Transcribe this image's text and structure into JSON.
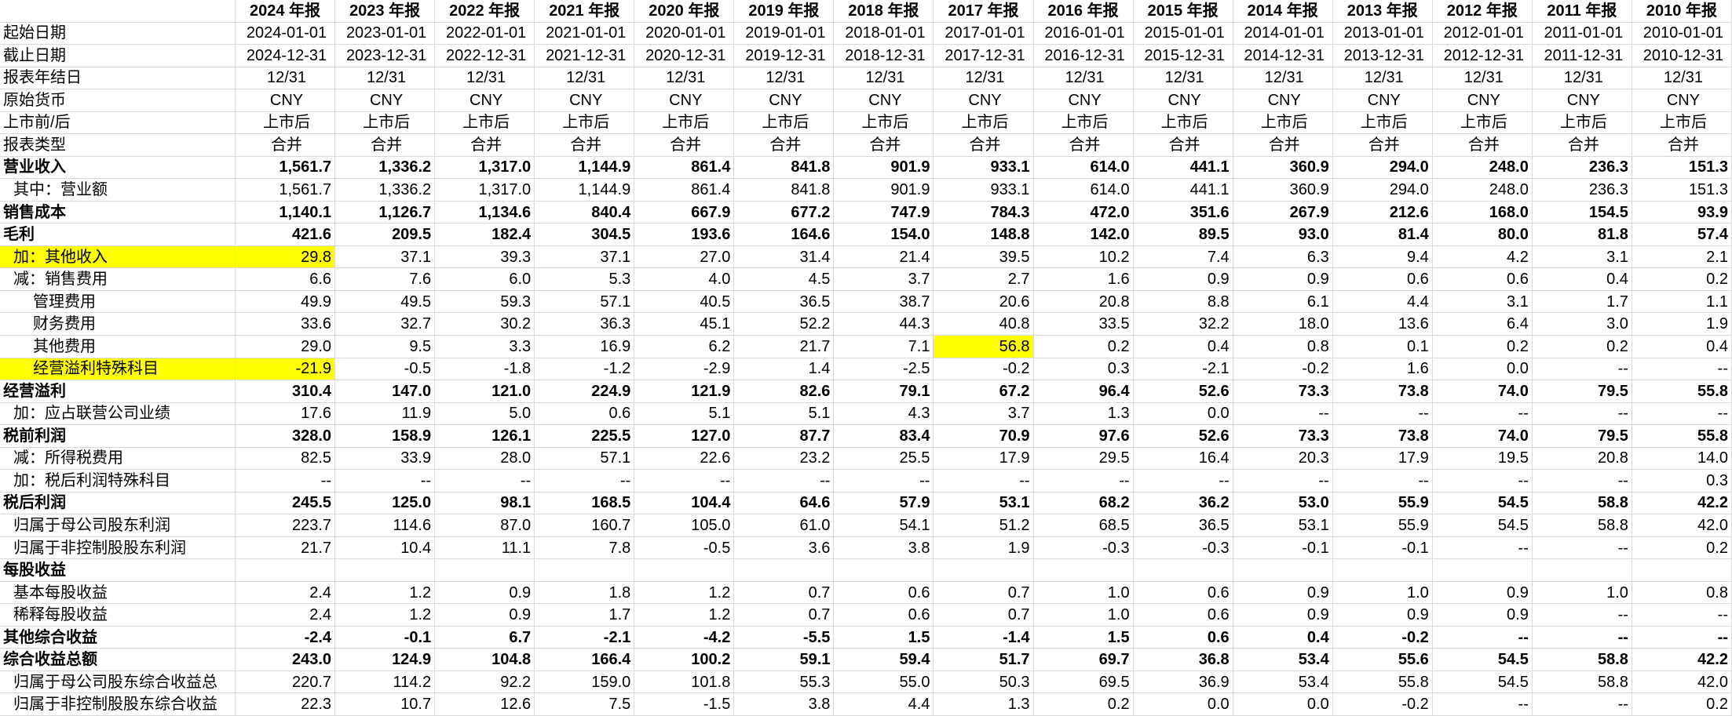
{
  "sheet": {
    "columns": [
      "2024 年报",
      "2023 年报",
      "2022 年报",
      "2021 年报",
      "2020 年报",
      "2019 年报",
      "2018 年报",
      "2017 年报",
      "2016 年报",
      "2015 年报",
      "2014 年报",
      "2013 年报",
      "2012 年报",
      "2011 年报",
      "2010 年报"
    ],
    "rows": [
      {
        "label": "起始日期",
        "values": [
          "2024-01-01",
          "2023-01-01",
          "2022-01-01",
          "2021-01-01",
          "2020-01-01",
          "2019-01-01",
          "2018-01-01",
          "2017-01-01",
          "2016-01-01",
          "2015-01-01",
          "2014-01-01",
          "2013-01-01",
          "2012-01-01",
          "2011-01-01",
          "2010-01-01"
        ]
      },
      {
        "label": "截止日期",
        "values": [
          "2024-12-31",
          "2023-12-31",
          "2022-12-31",
          "2021-12-31",
          "2020-12-31",
          "2019-12-31",
          "2018-12-31",
          "2017-12-31",
          "2016-12-31",
          "2015-12-31",
          "2014-12-31",
          "2013-12-31",
          "2012-12-31",
          "2011-12-31",
          "2010-12-31"
        ]
      },
      {
        "label": "报表年结日",
        "values": [
          "12/31",
          "12/31",
          "12/31",
          "12/31",
          "12/31",
          "12/31",
          "12/31",
          "12/31",
          "12/31",
          "12/31",
          "12/31",
          "12/31",
          "12/31",
          "12/31",
          "12/31"
        ]
      },
      {
        "label": "原始货币",
        "values": [
          "CNY",
          "CNY",
          "CNY",
          "CNY",
          "CNY",
          "CNY",
          "CNY",
          "CNY",
          "CNY",
          "CNY",
          "CNY",
          "CNY",
          "CNY",
          "CNY",
          "CNY"
        ]
      },
      {
        "label": "上市前/后",
        "values": [
          "上市后",
          "上市后",
          "上市后",
          "上市后",
          "上市后",
          "上市后",
          "上市后",
          "上市后",
          "上市后",
          "上市后",
          "上市后",
          "上市后",
          "上市后",
          "上市后",
          "上市后"
        ]
      },
      {
        "label": "报表类型",
        "values": [
          "合并",
          "合并",
          "合并",
          "合并",
          "合并",
          "合并",
          "合并",
          "合并",
          "合并",
          "合并",
          "合并",
          "合并",
          "合并",
          "合并",
          "合并"
        ]
      },
      {
        "label": "营业收入",
        "values": [
          "1,561.7",
          "1,336.2",
          "1,317.0",
          "1,144.9",
          "861.4",
          "841.8",
          "901.9",
          "933.1",
          "614.0",
          "441.1",
          "360.9",
          "294.0",
          "248.0",
          "236.3",
          "151.3"
        ]
      },
      {
        "label": "其中：营业额",
        "values": [
          "1,561.7",
          "1,336.2",
          "1,317.0",
          "1,144.9",
          "861.4",
          "841.8",
          "901.9",
          "933.1",
          "614.0",
          "441.1",
          "360.9",
          "294.0",
          "248.0",
          "236.3",
          "151.3"
        ]
      },
      {
        "label": "销售成本",
        "values": [
          "1,140.1",
          "1,126.7",
          "1,134.6",
          "840.4",
          "667.9",
          "677.2",
          "747.9",
          "784.3",
          "472.0",
          "351.6",
          "267.9",
          "212.6",
          "168.0",
          "154.5",
          "93.9"
        ]
      },
      {
        "label": "毛利",
        "values": [
          "421.6",
          "209.5",
          "182.4",
          "304.5",
          "193.6",
          "164.6",
          "154.0",
          "148.8",
          "142.0",
          "89.5",
          "93.0",
          "81.4",
          "80.0",
          "81.8",
          "57.4"
        ]
      },
      {
        "label": "加：其他收入",
        "values": [
          "29.8",
          "37.1",
          "39.3",
          "37.1",
          "27.0",
          "31.4",
          "21.4",
          "39.5",
          "10.2",
          "7.4",
          "6.3",
          "9.4",
          "4.2",
          "3.1",
          "2.1"
        ]
      },
      {
        "label": "减：销售费用",
        "values": [
          "6.6",
          "7.6",
          "6.0",
          "5.3",
          "4.0",
          "4.5",
          "3.7",
          "2.7",
          "1.6",
          "0.9",
          "0.9",
          "0.6",
          "0.6",
          "0.4",
          "0.2"
        ]
      },
      {
        "label": "管理费用",
        "values": [
          "49.9",
          "49.5",
          "59.3",
          "57.1",
          "40.5",
          "36.5",
          "38.7",
          "20.6",
          "20.8",
          "8.8",
          "6.1",
          "4.4",
          "3.1",
          "1.7",
          "1.1"
        ]
      },
      {
        "label": "财务费用",
        "values": [
          "33.6",
          "32.7",
          "30.2",
          "36.3",
          "45.1",
          "52.2",
          "44.3",
          "40.8",
          "33.5",
          "32.2",
          "18.0",
          "13.6",
          "6.4",
          "3.0",
          "1.9"
        ]
      },
      {
        "label": "其他费用",
        "values": [
          "29.0",
          "9.5",
          "3.3",
          "16.9",
          "6.2",
          "21.7",
          "7.1",
          "56.8",
          "0.2",
          "0.4",
          "0.8",
          "0.1",
          "0.2",
          "0.2",
          "0.4"
        ]
      },
      {
        "label": "经营溢利特殊科目",
        "values": [
          "-21.9",
          "-0.5",
          "-1.8",
          "-1.2",
          "-2.9",
          "1.4",
          "-2.5",
          "-0.2",
          "0.3",
          "-2.1",
          "-0.2",
          "1.6",
          "0.0",
          "--",
          "--"
        ]
      },
      {
        "label": "经营溢利",
        "values": [
          "310.4",
          "147.0",
          "121.0",
          "224.9",
          "121.9",
          "82.6",
          "79.1",
          "67.2",
          "96.4",
          "52.6",
          "73.3",
          "73.8",
          "74.0",
          "79.5",
          "55.8"
        ]
      },
      {
        "label": "加：应占联营公司业绩",
        "values": [
          "17.6",
          "11.9",
          "5.0",
          "0.6",
          "5.1",
          "5.1",
          "4.3",
          "3.7",
          "1.3",
          "0.0",
          "--",
          "--",
          "--",
          "--",
          "--"
        ]
      },
      {
        "label": "税前利润",
        "values": [
          "328.0",
          "158.9",
          "126.1",
          "225.5",
          "127.0",
          "87.7",
          "83.4",
          "70.9",
          "97.6",
          "52.6",
          "73.3",
          "73.8",
          "74.0",
          "79.5",
          "55.8"
        ]
      },
      {
        "label": "减：所得税费用",
        "values": [
          "82.5",
          "33.9",
          "28.0",
          "57.1",
          "22.6",
          "23.2",
          "25.5",
          "17.9",
          "29.5",
          "16.4",
          "20.3",
          "17.9",
          "19.5",
          "20.8",
          "14.0"
        ]
      },
      {
        "label": "加：税后利润特殊科目",
        "values": [
          "--",
          "--",
          "--",
          "--",
          "--",
          "--",
          "--",
          "--",
          "--",
          "--",
          "--",
          "--",
          "--",
          "--",
          "0.3"
        ]
      },
      {
        "label": "税后利润",
        "values": [
          "245.5",
          "125.0",
          "98.1",
          "168.5",
          "104.4",
          "64.6",
          "57.9",
          "53.1",
          "68.2",
          "36.2",
          "53.0",
          "55.9",
          "54.5",
          "58.8",
          "42.2"
        ]
      },
      {
        "label": "归属于母公司股东利润",
        "values": [
          "223.7",
          "114.6",
          "87.0",
          "160.7",
          "105.0",
          "61.0",
          "54.1",
          "51.2",
          "68.5",
          "36.5",
          "53.1",
          "55.9",
          "54.5",
          "58.8",
          "42.0"
        ]
      },
      {
        "label": "归属于非控制股股东利润",
        "values": [
          "21.7",
          "10.4",
          "11.1",
          "7.8",
          "-0.5",
          "3.6",
          "3.8",
          "1.9",
          "-0.3",
          "-0.3",
          "-0.1",
          "-0.1",
          "--",
          "--",
          "0.2"
        ]
      },
      {
        "label": "每股收益",
        "values": []
      },
      {
        "label": "基本每股收益",
        "values": [
          "2.4",
          "1.2",
          "0.9",
          "1.8",
          "1.2",
          "0.7",
          "0.6",
          "0.7",
          "1.0",
          "0.6",
          "0.9",
          "1.0",
          "0.9",
          "1.0",
          "0.8"
        ]
      },
      {
        "label": "稀释每股收益",
        "values": [
          "2.4",
          "1.2",
          "0.9",
          "1.7",
          "1.2",
          "0.7",
          "0.6",
          "0.7",
          "1.0",
          "0.6",
          "0.9",
          "0.9",
          "0.9",
          "--",
          "--"
        ]
      },
      {
        "label": "其他综合收益",
        "values": [
          "-2.4",
          "-0.1",
          "6.7",
          "-2.1",
          "-4.2",
          "-5.5",
          "1.5",
          "-1.4",
          "1.5",
          "0.6",
          "0.4",
          "-0.2",
          "--",
          "--",
          "--"
        ]
      },
      {
        "label": "综合收益总额",
        "values": [
          "243.0",
          "124.9",
          "104.8",
          "166.4",
          "100.2",
          "59.1",
          "59.4",
          "51.7",
          "69.7",
          "36.8",
          "53.4",
          "55.6",
          "54.5",
          "58.8",
          "42.2"
        ]
      },
      {
        "label": "归属于母公司股东综合收益总",
        "values": [
          "220.7",
          "114.2",
          "92.2",
          "159.0",
          "101.8",
          "55.3",
          "55.0",
          "50.3",
          "69.5",
          "36.9",
          "53.4",
          "55.8",
          "54.5",
          "58.8",
          "42.0"
        ]
      },
      {
        "label": "归属于非控制股股东综合收益",
        "values": [
          "22.3",
          "10.7",
          "12.6",
          "7.5",
          "-1.5",
          "3.8",
          "4.4",
          "1.3",
          "0.2",
          "0.0",
          "0.0",
          "-0.2",
          "--",
          "--",
          "0.2"
        ]
      }
    ]
  },
  "colors": {
    "highlight": "#ffff00",
    "gridline": "#d9d9d9",
    "text": "#000000"
  }
}
